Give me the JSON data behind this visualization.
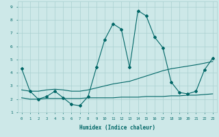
{
  "xlabel": "Humidex (Indice chaleur)",
  "xlim": [
    -0.5,
    23.5
  ],
  "ylim": [
    1,
    9.4
  ],
  "xticks": [
    0,
    1,
    2,
    3,
    4,
    5,
    6,
    7,
    8,
    9,
    10,
    11,
    12,
    13,
    14,
    15,
    16,
    17,
    18,
    19,
    20,
    21,
    22,
    23
  ],
  "yticks": [
    1,
    2,
    3,
    4,
    5,
    6,
    7,
    8,
    9
  ],
  "background_color": "#cde8e8",
  "grid_color": "#aad0d0",
  "line_color": "#006666",
  "line1_x": [
    0,
    1,
    2,
    3,
    4,
    5,
    6,
    7,
    8,
    9,
    10,
    11,
    12,
    13,
    14,
    15,
    16,
    17,
    18,
    19,
    20,
    21,
    22,
    23
  ],
  "line1_y": [
    4.3,
    2.6,
    2.0,
    2.2,
    2.6,
    2.1,
    1.6,
    1.5,
    2.2,
    4.4,
    6.5,
    7.7,
    7.3,
    4.4,
    8.7,
    8.3,
    6.7,
    5.9,
    3.3,
    2.5,
    2.4,
    2.6,
    4.2,
    5.1
  ],
  "line2_x": [
    0,
    1,
    2,
    3,
    4,
    5,
    6,
    7,
    8,
    9,
    10,
    11,
    12,
    13,
    14,
    15,
    16,
    17,
    18,
    19,
    20,
    21,
    22,
    23
  ],
  "line2_y": [
    2.1,
    2.0,
    2.0,
    2.05,
    2.05,
    2.05,
    2.05,
    2.05,
    2.1,
    2.1,
    2.1,
    2.1,
    2.15,
    2.15,
    2.15,
    2.2,
    2.2,
    2.2,
    2.25,
    2.25,
    2.3,
    2.3,
    2.35,
    2.4
  ],
  "line3_x": [
    0,
    1,
    2,
    3,
    4,
    5,
    6,
    7,
    8,
    9,
    10,
    11,
    12,
    13,
    14,
    15,
    16,
    17,
    18,
    19,
    20,
    21,
    22,
    23
  ],
  "line3_y": [
    2.7,
    2.6,
    2.6,
    2.7,
    2.75,
    2.7,
    2.6,
    2.6,
    2.7,
    2.85,
    3.0,
    3.15,
    3.25,
    3.35,
    3.55,
    3.75,
    3.95,
    4.15,
    4.3,
    4.4,
    4.5,
    4.6,
    4.72,
    4.85
  ]
}
